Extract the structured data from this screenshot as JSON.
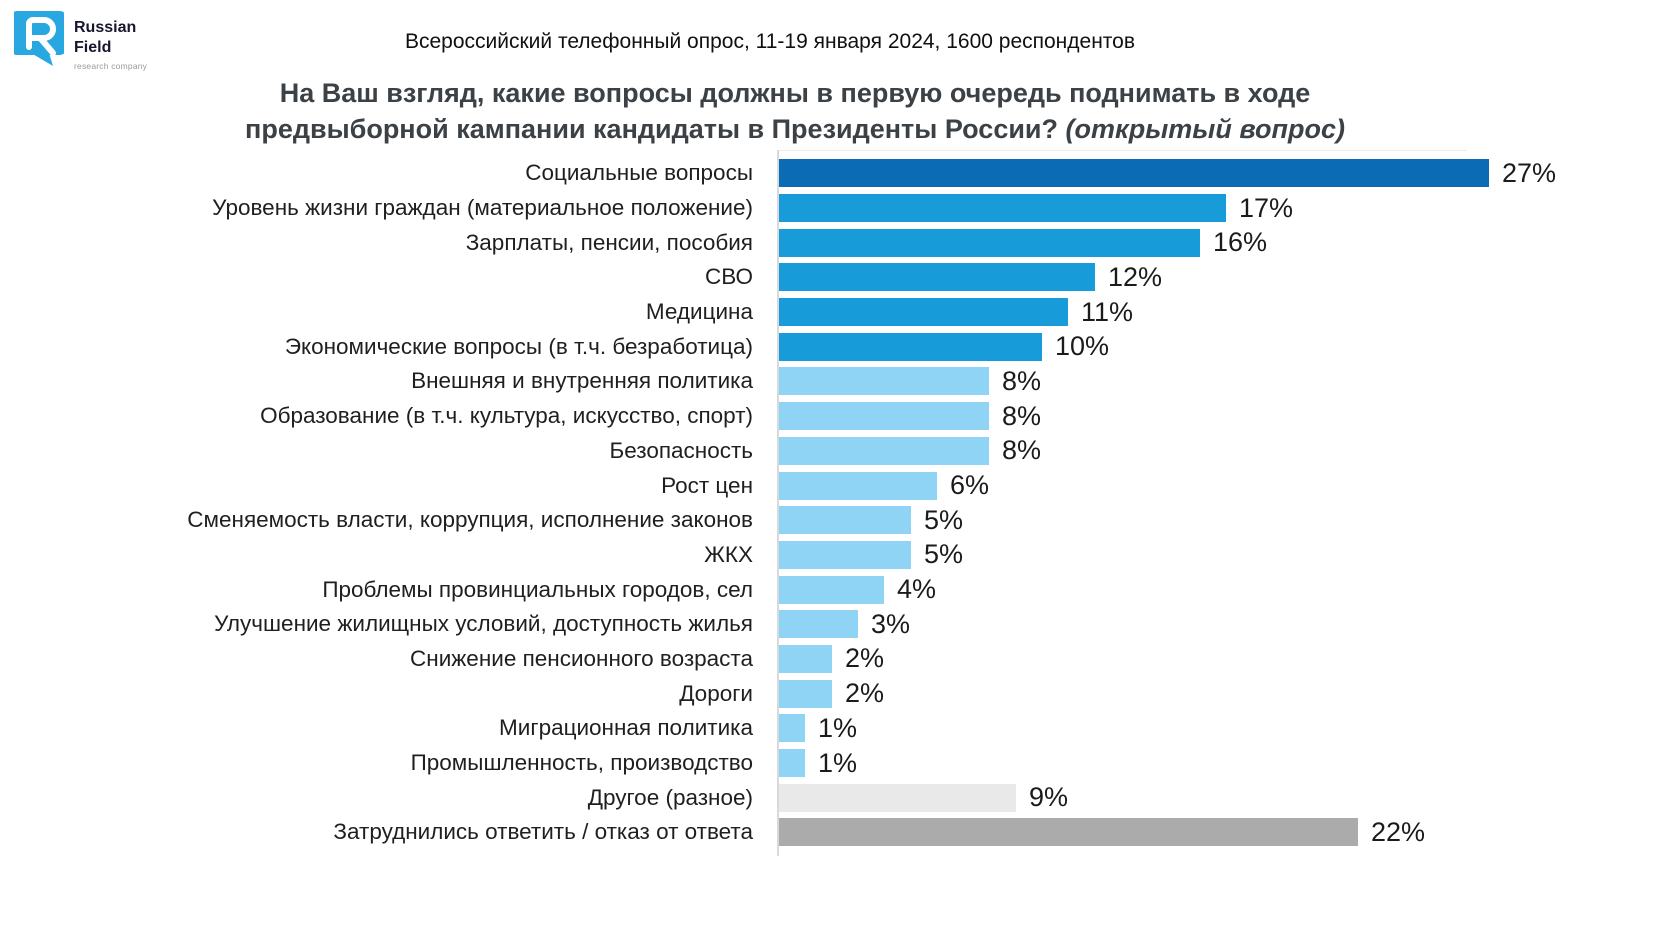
{
  "logo": {
    "name_line1": "Russian",
    "name_line2": "Field",
    "tagline": "research company",
    "icon_color": "#29a7e0"
  },
  "header": {
    "survey_info": "Всероссийский телефонный опрос, 11-19 января 2024, 1600 респондентов"
  },
  "title": {
    "main": "На Ваш взгляд, какие вопросы должны в первую очередь поднимать в ходе предвыборной кампании кандидаты в Президенты России?",
    "italic": "(открытый вопрос)"
  },
  "palette": {
    "dark_blue": "#0b6cb5",
    "medium_blue": "#189cd9",
    "light_blue": "#8fd3f5",
    "light_gray": "#e9e9e9",
    "gray": "#ababab",
    "axis": "#d9d9d9"
  },
  "chart_data": {
    "type": "bar",
    "orientation": "horizontal",
    "value_suffix": "%",
    "xlim": [
      0,
      27
    ],
    "grid": false,
    "categories": [
      "Социальные вопросы",
      "Уровень жизни граждан (материальное положение)",
      "Зарплаты, пенсии, пособия",
      "СВО",
      "Медицина",
      "Экономические вопросы (в т.ч. безработица)",
      "Внешняя и внутренняя политика",
      "Образование (в т.ч. культура, искусство, спорт)",
      "Безопасность",
      "Рост цен",
      "Сменяемость власти, коррупция, исполнение законов",
      "ЖКХ",
      "Проблемы провинциальных городов, сел",
      "Улучшение жилищных условий, доступность жилья",
      "Снижение пенсионного возраста",
      "Дороги",
      "Миграционная политика",
      "Промышленность, производство",
      "Другое (разное)",
      "Затруднились ответить / отказ от ответа"
    ],
    "values": [
      27,
      17,
      16,
      12,
      11,
      10,
      8,
      8,
      8,
      6,
      5,
      5,
      4,
      3,
      2,
      2,
      1,
      1,
      9,
      22
    ],
    "colors": [
      "dark_blue",
      "medium_blue",
      "medium_blue",
      "medium_blue",
      "medium_blue",
      "medium_blue",
      "light_blue",
      "light_blue",
      "light_blue",
      "light_blue",
      "light_blue",
      "light_blue",
      "light_blue",
      "light_blue",
      "light_blue",
      "light_blue",
      "light_blue",
      "light_blue",
      "light_gray",
      "gray"
    ]
  }
}
